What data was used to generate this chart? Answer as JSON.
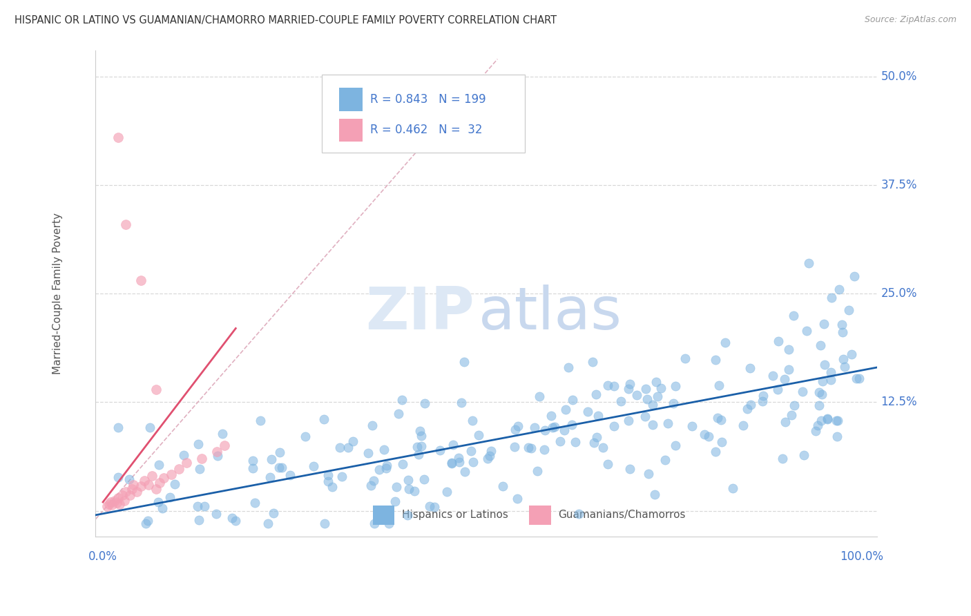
{
  "title": "HISPANIC OR LATINO VS GUAMANIAN/CHAMORRO MARRIED-COUPLE FAMILY POVERTY CORRELATION CHART",
  "source": "Source: ZipAtlas.com",
  "ylabel": "Married-Couple Family Poverty",
  "xlabel": "",
  "xlim": [
    -0.01,
    1.02
  ],
  "ylim": [
    -0.03,
    0.53
  ],
  "yticks": [
    0.0,
    0.125,
    0.25,
    0.375,
    0.5
  ],
  "ytick_labels": [
    "",
    "12.5%",
    "25.0%",
    "37.5%",
    "50.0%"
  ],
  "blue_R": 0.843,
  "blue_N": 199,
  "pink_R": 0.462,
  "pink_N": 32,
  "blue_color": "#7db4e0",
  "pink_color": "#f4a0b5",
  "trend_blue": "#1a5fa8",
  "trend_pink": "#e05070",
  "trend_diag_color": "#e0b0c0",
  "background": "#ffffff",
  "grid_color": "#d8d8d8",
  "legend_text_color": "#4477cc",
  "axis_label_color": "#4477cc",
  "title_color": "#333333",
  "watermark_zip_color": "#dde8f5",
  "watermark_atlas_color": "#c8d8ee",
  "seed": 42,
  "blue_trend_x0": -0.01,
  "blue_trend_y0": -0.005,
  "blue_trend_x1": 1.02,
  "blue_trend_y1": 0.165,
  "pink_trend_x0": 0.0,
  "pink_trend_y0": 0.01,
  "pink_trend_x1": 0.175,
  "pink_trend_y1": 0.21
}
